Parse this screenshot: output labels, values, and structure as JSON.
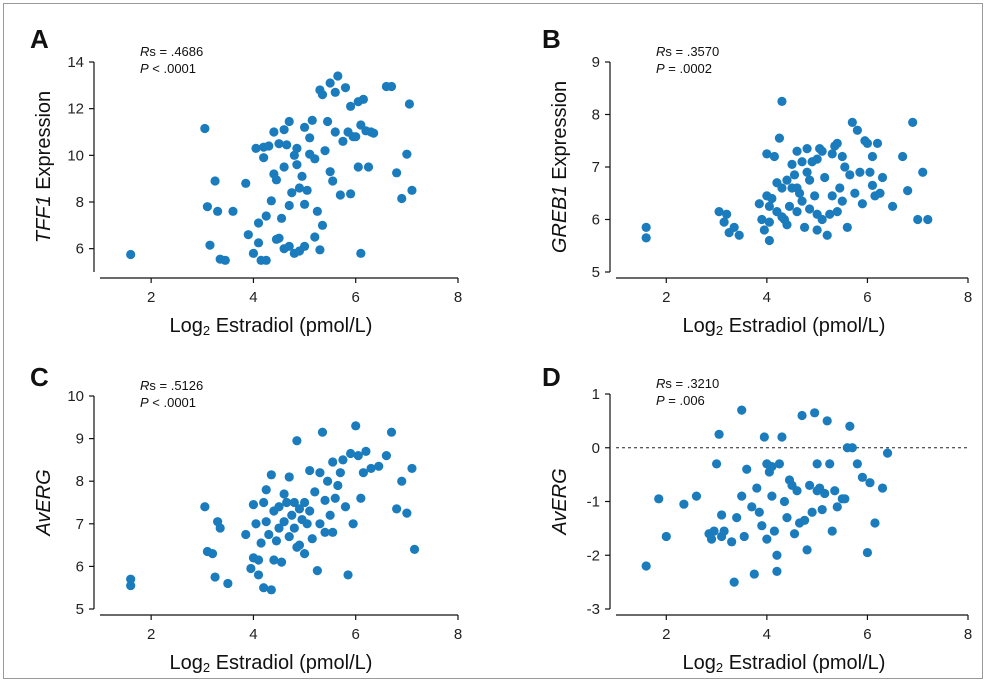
{
  "chart_data": [
    {
      "type": "scatter",
      "panel": "A",
      "stat_label": "Rs",
      "rs_value": " = .4686",
      "p_label": "P",
      "p_value": " < .0001",
      "xlabel_prefix": "Log",
      "xlabel_sub": "2",
      "xlabel_rest": " Estradiol (pmol/L)",
      "ylabel_italic": "TFF1",
      "ylabel_rest": " Expression",
      "xlim": [
        1,
        8
      ],
      "ylim": [
        5,
        14
      ],
      "xticks": [
        2,
        4,
        6,
        8
      ],
      "yticks": [
        6,
        8,
        10,
        12,
        14
      ],
      "x": [
        1.6,
        3.05,
        3.1,
        3.15,
        3.3,
        3.35,
        3.45,
        3.85,
        3.9,
        4.0,
        4.05,
        4.1,
        4.1,
        4.15,
        4.2,
        4.2,
        4.25,
        4.25,
        4.3,
        4.35,
        4.4,
        4.4,
        4.45,
        4.5,
        4.5,
        4.55,
        4.6,
        4.6,
        4.6,
        4.65,
        4.7,
        4.7,
        4.75,
        4.8,
        4.8,
        4.85,
        4.85,
        4.9,
        4.9,
        4.95,
        5.0,
        5.0,
        5.0,
        5.05,
        5.1,
        5.1,
        5.15,
        5.2,
        5.25,
        5.3,
        5.3,
        5.35,
        5.35,
        5.4,
        5.45,
        5.5,
        5.5,
        5.55,
        5.6,
        5.6,
        5.65,
        5.7,
        5.75,
        5.8,
        5.85,
        5.9,
        5.9,
        5.95,
        6.0,
        6.05,
        6.05,
        6.1,
        6.1,
        6.15,
        6.2,
        6.25,
        6.3,
        6.35,
        6.6,
        6.7,
        6.8,
        6.9,
        7.0,
        7.05,
        7.1,
        3.25,
        3.6,
        4.7,
        5.2,
        4.45
      ],
      "y": [
        5.75,
        11.15,
        7.8,
        6.15,
        7.6,
        5.55,
        5.5,
        8.8,
        6.6,
        5.8,
        10.3,
        6.25,
        7.1,
        5.5,
        9.9,
        10.35,
        7.4,
        5.5,
        10.4,
        8.05,
        9.2,
        11.0,
        8.95,
        10.5,
        6.45,
        7.3,
        11.1,
        9.5,
        6.0,
        10.45,
        7.85,
        11.45,
        8.4,
        10.0,
        5.8,
        10.3,
        9.6,
        8.6,
        5.9,
        9.1,
        11.2,
        7.9,
        6.1,
        8.5,
        10.05,
        10.75,
        11.5,
        6.5,
        7.6,
        12.8,
        5.95,
        12.6,
        7.0,
        10.2,
        11.45,
        13.1,
        9.3,
        8.9,
        12.7,
        11.0,
        13.4,
        8.3,
        10.6,
        12.9,
        11.0,
        8.35,
        12.1,
        10.8,
        10.8,
        12.3,
        9.5,
        5.8,
        11.3,
        12.4,
        11.05,
        9.5,
        11.0,
        10.95,
        12.95,
        12.95,
        9.25,
        8.15,
        10.05,
        12.2,
        8.5,
        8.9,
        7.6,
        6.1,
        9.85,
        6.4
      ]
    },
    {
      "type": "scatter",
      "panel": "B",
      "stat_label": "Rs",
      "rs_value": " = .3570",
      "p_label": "P",
      "p_value": " = .0002",
      "xlabel_prefix": "Log",
      "xlabel_sub": "2",
      "xlabel_rest": " Estradiol (pmol/L)",
      "ylabel_italic": "GREB1",
      "ylabel_rest": " Expression",
      "xlim": [
        1,
        8
      ],
      "ylim": [
        5,
        9
      ],
      "xticks": [
        2,
        4,
        6,
        8
      ],
      "yticks": [
        5,
        6,
        7,
        8,
        9
      ],
      "x": [
        1.6,
        1.6,
        3.05,
        3.15,
        3.2,
        3.25,
        3.35,
        3.45,
        3.85,
        3.9,
        3.95,
        4.0,
        4.0,
        4.05,
        4.05,
        4.1,
        4.15,
        4.2,
        4.2,
        4.25,
        4.3,
        4.3,
        4.35,
        4.4,
        4.4,
        4.45,
        4.5,
        4.5,
        4.55,
        4.6,
        4.6,
        4.65,
        4.7,
        4.7,
        4.75,
        4.8,
        4.8,
        4.85,
        4.85,
        4.9,
        4.95,
        5.0,
        5.0,
        5.05,
        5.1,
        5.1,
        5.15,
        5.2,
        5.25,
        5.3,
        5.3,
        5.35,
        5.4,
        5.4,
        5.45,
        5.5,
        5.5,
        5.55,
        5.6,
        5.65,
        5.7,
        5.75,
        5.8,
        5.85,
        5.9,
        5.95,
        6.0,
        6.05,
        6.1,
        6.1,
        6.15,
        6.2,
        6.25,
        6.3,
        6.5,
        6.7,
        6.8,
        6.9,
        7.0,
        7.1,
        7.2,
        4.3,
        5.0,
        4.05,
        4.6
      ],
      "y": [
        5.85,
        5.65,
        6.15,
        5.95,
        6.1,
        5.75,
        5.85,
        5.7,
        6.3,
        6.0,
        5.8,
        7.25,
        6.45,
        5.95,
        5.6,
        6.4,
        7.2,
        6.15,
        6.7,
        7.55,
        6.6,
        8.25,
        6.0,
        6.75,
        5.9,
        6.25,
        6.6,
        7.05,
        6.85,
        7.3,
        6.15,
        6.5,
        7.1,
        6.35,
        5.85,
        6.9,
        7.35,
        6.2,
        6.75,
        7.1,
        6.45,
        7.15,
        5.8,
        7.35,
        6.0,
        7.3,
        6.8,
        5.7,
        6.1,
        7.25,
        6.45,
        7.4,
        6.15,
        7.45,
        6.6,
        7.2,
        6.35,
        7.0,
        5.85,
        6.85,
        7.85,
        6.5,
        7.7,
        6.9,
        6.3,
        7.5,
        7.45,
        6.9,
        6.65,
        7.2,
        6.45,
        7.45,
        6.5,
        6.8,
        6.25,
        7.2,
        6.55,
        7.85,
        6.0,
        6.9,
        6.0,
        6.05,
        6.1,
        6.25,
        6.6
      ]
    },
    {
      "type": "scatter",
      "panel": "C",
      "stat_label": "Rs",
      "rs_value": " = .5126",
      "p_label": "P",
      "p_value": " < .0001",
      "xlabel_prefix": "Log",
      "xlabel_sub": "2",
      "xlabel_rest": " Estradiol (pmol/L)",
      "ylabel_italic": "AvERG",
      "ylabel_rest": "",
      "xlim": [
        1,
        8
      ],
      "ylim": [
        5,
        10
      ],
      "xticks": [
        2,
        4,
        6,
        8
      ],
      "yticks": [
        5,
        6,
        7,
        8,
        9,
        10
      ],
      "x": [
        1.6,
        1.6,
        3.05,
        3.1,
        3.2,
        3.25,
        3.35,
        3.5,
        3.85,
        3.95,
        4.0,
        4.0,
        4.05,
        4.1,
        4.15,
        4.2,
        4.2,
        4.25,
        4.3,
        4.35,
        4.4,
        4.4,
        4.45,
        4.5,
        4.5,
        4.55,
        4.6,
        4.6,
        4.65,
        4.7,
        4.7,
        4.75,
        4.8,
        4.8,
        4.85,
        4.9,
        4.9,
        4.95,
        5.0,
        5.0,
        5.05,
        5.1,
        5.1,
        5.15,
        5.2,
        5.25,
        5.3,
        5.3,
        5.35,
        5.4,
        5.4,
        5.45,
        5.5,
        5.55,
        5.6,
        5.65,
        5.7,
        5.75,
        5.8,
        5.85,
        5.9,
        5.95,
        6.0,
        6.05,
        6.1,
        6.15,
        6.2,
        6.3,
        6.45,
        6.6,
        6.7,
        6.8,
        6.9,
        7.0,
        7.1,
        7.15,
        4.1,
        4.25,
        3.3,
        4.85,
        5.55,
        4.35
      ],
      "y": [
        5.7,
        5.55,
        7.4,
        6.35,
        6.3,
        5.75,
        6.9,
        5.6,
        6.75,
        5.95,
        6.2,
        7.45,
        7.0,
        5.8,
        6.55,
        7.5,
        5.5,
        7.05,
        6.75,
        8.15,
        6.15,
        7.3,
        6.6,
        7.4,
        6.9,
        6.1,
        7.05,
        7.7,
        7.5,
        6.7,
        8.1,
        7.2,
        7.5,
        6.9,
        8.95,
        7.35,
        6.5,
        7.1,
        7.5,
        6.3,
        7.0,
        7.3,
        8.25,
        6.65,
        7.75,
        5.9,
        8.2,
        7.0,
        9.15,
        7.55,
        6.8,
        8.0,
        7.2,
        8.45,
        7.6,
        7.9,
        8.2,
        8.5,
        7.4,
        5.8,
        8.65,
        7.0,
        9.3,
        8.6,
        7.6,
        8.2,
        8.7,
        8.3,
        8.35,
        8.6,
        9.15,
        7.35,
        8.0,
        7.25,
        8.3,
        6.4,
        6.15,
        7.8,
        7.05,
        6.45,
        6.8,
        5.45
      ]
    },
    {
      "type": "scatter",
      "panel": "D",
      "stat_label": "Rs",
      "rs_value": " = .3210",
      "p_label": "P",
      "p_value": " = .006",
      "xlabel_prefix": "Log",
      "xlabel_sub": "2",
      "xlabel_rest": " Estradiol (pmol/L)",
      "ylabel_italic": "AvERG",
      "ylabel_rest": "",
      "xlim": [
        1,
        8
      ],
      "ylim": [
        -3,
        1
      ],
      "xticks": [
        2,
        4,
        6,
        8
      ],
      "yticks": [
        -3,
        -2,
        -1,
        0,
        1
      ],
      "reference_line_y": 0,
      "x": [
        1.6,
        1.85,
        2.0,
        2.35,
        2.6,
        2.85,
        2.9,
        2.95,
        3.0,
        3.05,
        3.1,
        3.15,
        3.3,
        3.35,
        3.4,
        3.5,
        3.55,
        3.6,
        3.7,
        3.75,
        3.8,
        3.85,
        3.9,
        3.95,
        4.0,
        4.0,
        4.05,
        4.1,
        4.15,
        4.2,
        4.2,
        4.25,
        4.3,
        4.35,
        4.4,
        4.45,
        4.5,
        4.55,
        4.6,
        4.65,
        4.7,
        4.75,
        4.8,
        4.85,
        4.9,
        4.95,
        5.0,
        5.0,
        5.05,
        5.1,
        5.15,
        5.2,
        5.25,
        5.3,
        5.35,
        5.4,
        5.5,
        5.55,
        5.6,
        5.65,
        5.7,
        5.8,
        5.9,
        6.0,
        6.05,
        6.15,
        6.3,
        6.4,
        3.1,
        3.5,
        4.1
      ],
      "y": [
        -2.2,
        -0.95,
        -1.65,
        -1.05,
        -0.9,
        -1.6,
        -1.7,
        -1.55,
        -0.3,
        0.25,
        -1.65,
        -1.55,
        -1.75,
        -2.5,
        -1.3,
        0.7,
        -1.65,
        -0.4,
        -1.1,
        -2.35,
        -0.75,
        -1.2,
        -1.45,
        0.2,
        -0.3,
        -1.7,
        -0.45,
        -0.9,
        -1.55,
        -2.0,
        -2.3,
        -0.3,
        0.2,
        -1.0,
        -1.3,
        -0.6,
        -0.7,
        -1.6,
        -0.8,
        -1.4,
        0.6,
        -1.35,
        -1.9,
        -0.7,
        -1.2,
        0.65,
        -0.8,
        -0.3,
        -0.75,
        -1.15,
        -0.85,
        0.5,
        -0.3,
        -1.55,
        -0.8,
        -1.1,
        -0.95,
        -0.95,
        0.0,
        0.4,
        0.0,
        -0.3,
        -0.55,
        -1.95,
        -0.65,
        -1.4,
        -0.75,
        -0.1,
        -1.25,
        -0.9,
        -0.35
      ]
    }
  ]
}
